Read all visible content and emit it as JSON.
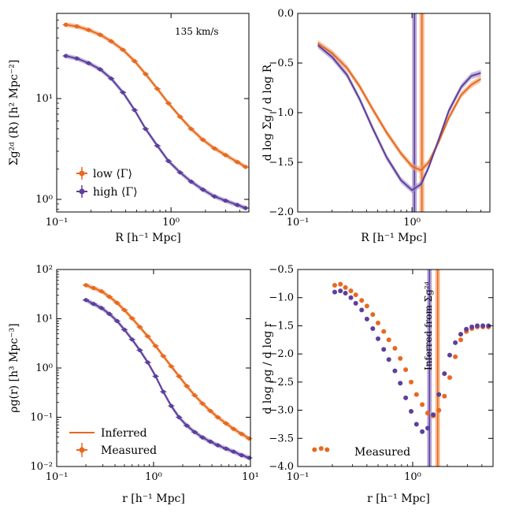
{
  "colors": {
    "orange": "#e8681f",
    "purple": "#5d3f9c",
    "orange_band": "#f0a36b",
    "purple_band": "#a08cc9"
  },
  "chart_data": [
    {
      "id": "sigma",
      "type": "line",
      "xscale": "log",
      "yscale": "log",
      "xlim": [
        0.1,
        4.8
      ],
      "ylim": [
        0.75,
        70
      ],
      "xlabel": "R [h⁻¹ Mpc]",
      "ylabel": "Σg²ᵈ (R) [h² Mpc⁻²]",
      "annotation": "135 km/s",
      "legend_position": "lower-left",
      "xticks": [
        {
          "v": 0.1,
          "label": "10⁻¹"
        },
        {
          "v": 1,
          "label": "10⁰"
        }
      ],
      "yticks": [
        {
          "v": 1,
          "label": "10⁰"
        },
        {
          "v": 10,
          "label": "10¹"
        }
      ],
      "series": [
        {
          "name": "low ⟨Γ⟩",
          "color": "orange",
          "x": [
            0.12,
            0.15,
            0.19,
            0.24,
            0.3,
            0.38,
            0.48,
            0.6,
            0.76,
            0.95,
            1.2,
            1.5,
            1.9,
            2.4,
            3.0,
            3.8,
            4.5
          ],
          "y": [
            54,
            52,
            48,
            43,
            37,
            30.5,
            23.5,
            17.5,
            12.5,
            9.0,
            6.6,
            5.0,
            3.9,
            3.2,
            2.75,
            2.35,
            2.1
          ]
        },
        {
          "name": "high ⟨Γ⟩",
          "color": "purple",
          "x": [
            0.12,
            0.15,
            0.19,
            0.24,
            0.3,
            0.38,
            0.48,
            0.6,
            0.76,
            0.95,
            1.2,
            1.5,
            1.9,
            2.4,
            3.0,
            3.8,
            4.5
          ],
          "y": [
            26.5,
            25,
            22.5,
            19.5,
            15.8,
            11.5,
            7.7,
            5.0,
            3.4,
            2.4,
            1.85,
            1.5,
            1.25,
            1.07,
            0.97,
            0.88,
            0.82
          ]
        }
      ]
    },
    {
      "id": "dsigma",
      "type": "line",
      "xscale": "log",
      "yscale": "linear",
      "xlim": [
        0.1,
        4.8
      ],
      "ylim": [
        -2.0,
        0.0
      ],
      "xlabel": "R [h⁻¹ Mpc]",
      "ylabel": "d log Σg / d log R",
      "xticks": [
        {
          "v": 0.1,
          "label": "10⁻¹"
        },
        {
          "v": 1,
          "label": "10⁰"
        }
      ],
      "yticks": [
        {
          "v": -2.0,
          "label": "−2.0"
        },
        {
          "v": -1.5,
          "label": "−1.5"
        },
        {
          "v": -1.0,
          "label": "−1.0"
        },
        {
          "v": -0.5,
          "label": "−0.5"
        },
        {
          "v": 0.0,
          "label": "0.0"
        }
      ],
      "vlines": [
        {
          "x": 1.05,
          "color": "purple"
        },
        {
          "x": 1.22,
          "color": "orange"
        }
      ],
      "series": [
        {
          "name": "low ⟨Γ⟩",
          "color": "orange",
          "x": [
            0.15,
            0.2,
            0.27,
            0.35,
            0.45,
            0.6,
            0.8,
            1.0,
            1.2,
            1.4,
            1.7,
            2.1,
            2.7,
            3.3,
            4.0
          ],
          "y": [
            -0.3,
            -0.4,
            -0.55,
            -0.74,
            -0.96,
            -1.2,
            -1.41,
            -1.54,
            -1.58,
            -1.5,
            -1.3,
            -1.05,
            -0.82,
            -0.72,
            -0.66
          ]
        },
        {
          "name": "high ⟨Γ⟩",
          "color": "purple",
          "x": [
            0.15,
            0.2,
            0.27,
            0.35,
            0.45,
            0.6,
            0.8,
            1.0,
            1.2,
            1.4,
            1.7,
            2.1,
            2.7,
            3.3,
            4.0
          ],
          "y": [
            -0.32,
            -0.44,
            -0.62,
            -0.87,
            -1.15,
            -1.45,
            -1.68,
            -1.78,
            -1.72,
            -1.55,
            -1.28,
            -0.98,
            -0.74,
            -0.63,
            -0.6
          ]
        }
      ]
    },
    {
      "id": "rho",
      "type": "line",
      "xscale": "log",
      "yscale": "log",
      "xlim": [
        0.1,
        10
      ],
      "ylim": [
        0.01,
        100
      ],
      "xlabel": "r [h⁻¹ Mpc]",
      "ylabel": "ρg(r) [h³ Mpc⁻³]",
      "legend_position": "lower-left",
      "legend": [
        "Inferred",
        "Measured"
      ],
      "xticks": [
        {
          "v": 0.1,
          "label": "10⁻¹"
        },
        {
          "v": 1,
          "label": "10⁰"
        },
        {
          "v": 10,
          "label": "10¹"
        }
      ],
      "yticks": [
        {
          "v": 0.01,
          "label": "10⁻²"
        },
        {
          "v": 0.1,
          "label": "10⁻¹"
        },
        {
          "v": 1,
          "label": "10⁰"
        },
        {
          "v": 10,
          "label": "10¹"
        },
        {
          "v": 100,
          "label": "10²"
        }
      ],
      "series": [
        {
          "name": "low ⟨Γ⟩",
          "color": "orange",
          "x": [
            0.2,
            0.24,
            0.29,
            0.35,
            0.42,
            0.5,
            0.6,
            0.72,
            0.87,
            1.05,
            1.26,
            1.52,
            1.83,
            2.2,
            2.65,
            3.2,
            3.85,
            4.6,
            5.6,
            6.7,
            8.1,
            9.7
          ],
          "y": [
            48,
            42,
            36,
            28,
            21,
            15,
            10.2,
            6.8,
            4.4,
            2.8,
            1.75,
            1.08,
            0.68,
            0.43,
            0.28,
            0.19,
            0.135,
            0.1,
            0.075,
            0.058,
            0.046,
            0.037
          ]
        },
        {
          "name": "high ⟨Γ⟩",
          "color": "purple",
          "x": [
            0.2,
            0.24,
            0.29,
            0.35,
            0.42,
            0.5,
            0.6,
            0.72,
            0.87,
            1.05,
            1.26,
            1.52,
            1.83,
            2.2,
            2.65,
            3.2,
            3.85,
            4.6,
            5.6,
            6.7,
            8.1,
            9.7
          ],
          "y": [
            24,
            20,
            16.5,
            12.5,
            9,
            6,
            3.8,
            2.3,
            1.3,
            0.68,
            0.33,
            0.17,
            0.1,
            0.068,
            0.05,
            0.039,
            0.032,
            0.027,
            0.023,
            0.02,
            0.017,
            0.015
          ]
        }
      ]
    },
    {
      "id": "drho",
      "type": "scatter",
      "xscale": "log",
      "yscale": "linear",
      "xlim": [
        0.1,
        5
      ],
      "ylim": [
        -4.0,
        -0.5
      ],
      "xlabel": "r [h⁻¹ Mpc]",
      "ylabel": "d log ρg / d log r",
      "legend_position": "lower-left",
      "legend": [
        "Measured"
      ],
      "vline_annotation": "Inferred from Σg²ᵈ",
      "xticks": [
        {
          "v": 0.1,
          "label": "10⁻¹"
        },
        {
          "v": 1,
          "label": "10⁰"
        }
      ],
      "yticks": [
        {
          "v": -4.0,
          "label": "−4.0"
        },
        {
          "v": -3.5,
          "label": "−3.5"
        },
        {
          "v": -3.0,
          "label": "−3.0"
        },
        {
          "v": -2.5,
          "label": "−2.5"
        },
        {
          "v": -2.0,
          "label": "−2.0"
        },
        {
          "v": -1.5,
          "label": "−1.5"
        },
        {
          "v": -1.0,
          "label": "−1.0"
        },
        {
          "v": -0.5,
          "label": "−0.5"
        }
      ],
      "vlines": [
        {
          "x": 1.4,
          "color": "purple"
        },
        {
          "x": 1.65,
          "color": "orange"
        }
      ],
      "series": [
        {
          "name": "low ⟨Γ⟩",
          "color": "orange",
          "x": [
            0.21,
            0.235,
            0.26,
            0.29,
            0.32,
            0.36,
            0.4,
            0.45,
            0.5,
            0.56,
            0.62,
            0.7,
            0.78,
            0.87,
            0.97,
            1.08,
            1.21,
            1.35,
            1.51,
            1.69,
            1.89,
            2.1,
            2.35,
            2.62,
            2.93,
            3.27,
            3.65,
            4.08,
            4.56
          ],
          "y": [
            -0.78,
            -0.76,
            -0.82,
            -0.88,
            -0.95,
            -1.05,
            -1.15,
            -1.3,
            -1.45,
            -1.6,
            -1.75,
            -1.9,
            -2.08,
            -2.28,
            -2.5,
            -2.72,
            -2.9,
            -3.05,
            -3.1,
            -3.0,
            -2.75,
            -2.42,
            -2.05,
            -1.75,
            -1.6,
            -1.55,
            -1.52,
            -1.52,
            -1.52
          ]
        },
        {
          "name": "high ⟨Γ⟩",
          "color": "purple",
          "x": [
            0.21,
            0.235,
            0.26,
            0.29,
            0.32,
            0.36,
            0.4,
            0.45,
            0.5,
            0.56,
            0.62,
            0.7,
            0.78,
            0.87,
            0.97,
            1.08,
            1.21,
            1.35,
            1.51,
            1.69,
            1.89,
            2.1,
            2.35,
            2.62,
            2.93,
            3.27,
            3.65,
            4.08,
            4.56
          ],
          "y": [
            -0.9,
            -0.88,
            -0.92,
            -1.0,
            -1.1,
            -1.22,
            -1.38,
            -1.55,
            -1.73,
            -1.92,
            -2.1,
            -2.3,
            -2.52,
            -2.78,
            -3.02,
            -3.25,
            -3.38,
            -3.32,
            -3.08,
            -2.72,
            -2.35,
            -2.02,
            -1.8,
            -1.65,
            -1.56,
            -1.52,
            -1.5,
            -1.5,
            -1.5
          ]
        },
        {
          "name": "low ⟨Γ⟩",
          "color": "orange",
          "x": [
            0.14,
            0.16,
            0.18
          ],
          "y": [
            -3.7,
            -3.68,
            -3.7
          ]
        }
      ]
    }
  ]
}
